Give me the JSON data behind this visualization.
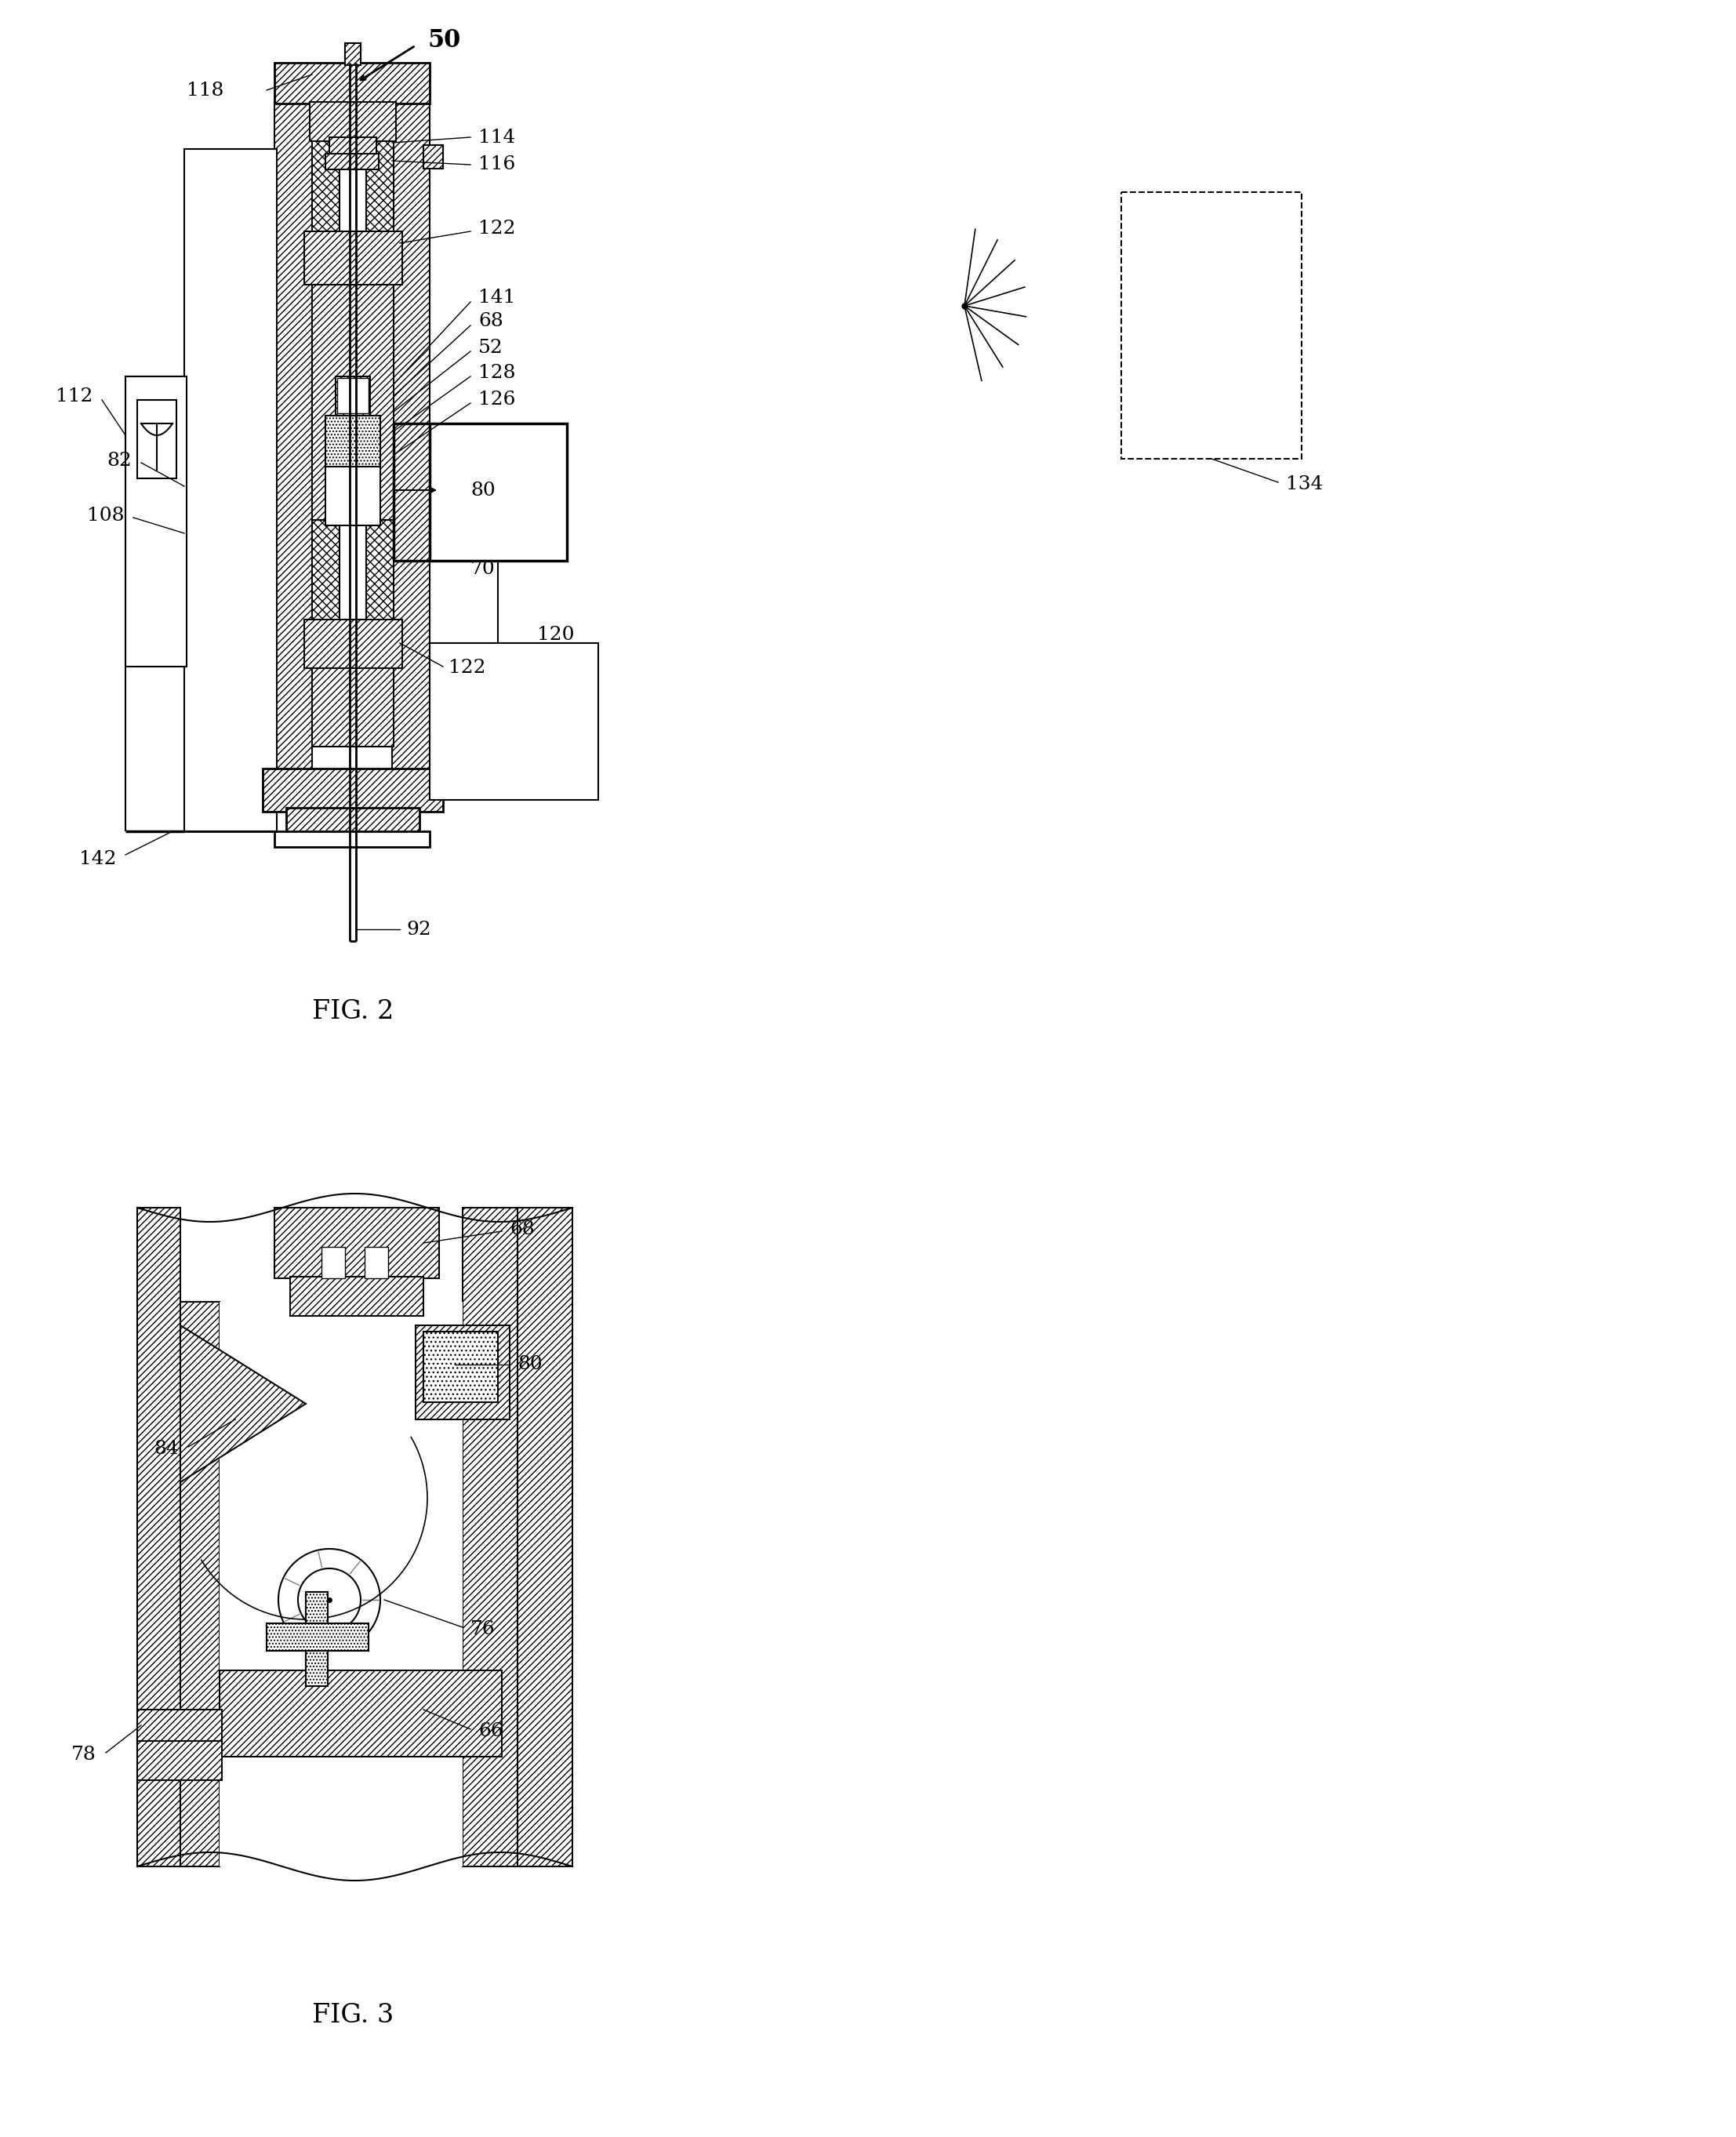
{
  "fig2_caption": "FIG. 2",
  "fig3_caption": "FIG. 3",
  "bg_color": "#ffffff"
}
